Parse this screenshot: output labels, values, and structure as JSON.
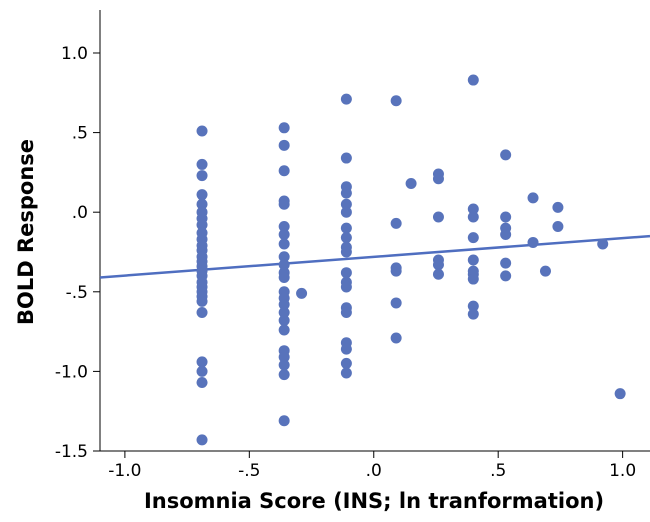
{
  "chart_data": {
    "type": "scatter",
    "title": "",
    "xlabel": "Insomnia Score (INS; ln tranformation)",
    "ylabel": "BOLD Response",
    "xlim": [
      -1.1,
      1.11
    ],
    "ylim": [
      -1.5,
      1.27
    ],
    "x_ticks": [
      -1.0,
      -0.5,
      0.0,
      0.5,
      1.0
    ],
    "x_tick_labels": [
      "-1.0",
      "-.5",
      ".0",
      ".5",
      "1.0"
    ],
    "y_ticks": [
      -1.5,
      -1.0,
      -0.5,
      0.0,
      0.5,
      1.0
    ],
    "y_tick_labels": [
      "-1.5",
      "-1.0",
      "-.5",
      ".0",
      ".5",
      "1.0"
    ],
    "grid": false,
    "legend": "none",
    "colors": {
      "points": "#5873bb",
      "fit_line": "#4f6ec0",
      "axis": "#000000"
    },
    "fit_line": {
      "x": [
        -1.1,
        1.11
      ],
      "y": [
        -0.41,
        -0.15
      ]
    },
    "points": [
      {
        "x": -0.69,
        "y": 0.51
      },
      {
        "x": -0.69,
        "y": 0.3
      },
      {
        "x": -0.69,
        "y": 0.23
      },
      {
        "x": -0.69,
        "y": 0.11
      },
      {
        "x": -0.69,
        "y": 0.05
      },
      {
        "x": -0.69,
        "y": 0.0
      },
      {
        "x": -0.69,
        "y": -0.04
      },
      {
        "x": -0.69,
        "y": -0.08
      },
      {
        "x": -0.69,
        "y": -0.13
      },
      {
        "x": -0.69,
        "y": -0.17
      },
      {
        "x": -0.69,
        "y": -0.21
      },
      {
        "x": -0.69,
        "y": -0.24
      },
      {
        "x": -0.69,
        "y": -0.28
      },
      {
        "x": -0.69,
        "y": -0.31
      },
      {
        "x": -0.69,
        "y": -0.34
      },
      {
        "x": -0.69,
        "y": -0.37
      },
      {
        "x": -0.69,
        "y": -0.4
      },
      {
        "x": -0.69,
        "y": -0.44
      },
      {
        "x": -0.69,
        "y": -0.47
      },
      {
        "x": -0.69,
        "y": -0.5
      },
      {
        "x": -0.69,
        "y": -0.53
      },
      {
        "x": -0.69,
        "y": -0.56
      },
      {
        "x": -0.69,
        "y": -0.63
      },
      {
        "x": -0.69,
        "y": -0.94
      },
      {
        "x": -0.69,
        "y": -1.0
      },
      {
        "x": -0.69,
        "y": -1.07
      },
      {
        "x": -0.69,
        "y": -1.43
      },
      {
        "x": -0.36,
        "y": 0.53
      },
      {
        "x": -0.36,
        "y": 0.42
      },
      {
        "x": -0.36,
        "y": 0.26
      },
      {
        "x": -0.36,
        "y": 0.07
      },
      {
        "x": -0.36,
        "y": 0.05
      },
      {
        "x": -0.36,
        "y": -0.09
      },
      {
        "x": -0.36,
        "y": -0.14
      },
      {
        "x": -0.36,
        "y": -0.2
      },
      {
        "x": -0.36,
        "y": -0.28
      },
      {
        "x": -0.36,
        "y": -0.33
      },
      {
        "x": -0.36,
        "y": -0.38
      },
      {
        "x": -0.36,
        "y": -0.41
      },
      {
        "x": -0.36,
        "y": -0.5
      },
      {
        "x": -0.36,
        "y": -0.54
      },
      {
        "x": -0.36,
        "y": -0.58
      },
      {
        "x": -0.36,
        "y": -0.63
      },
      {
        "x": -0.36,
        "y": -0.68
      },
      {
        "x": -0.36,
        "y": -0.74
      },
      {
        "x": -0.36,
        "y": -0.87
      },
      {
        "x": -0.36,
        "y": -0.91
      },
      {
        "x": -0.36,
        "y": -0.96
      },
      {
        "x": -0.36,
        "y": -1.02
      },
      {
        "x": -0.36,
        "y": -1.31
      },
      {
        "x": -0.29,
        "y": -0.51
      },
      {
        "x": -0.11,
        "y": 0.71
      },
      {
        "x": -0.11,
        "y": 0.34
      },
      {
        "x": -0.11,
        "y": 0.16
      },
      {
        "x": -0.11,
        "y": 0.12
      },
      {
        "x": -0.11,
        "y": 0.05
      },
      {
        "x": -0.11,
        "y": 0.0
      },
      {
        "x": -0.11,
        "y": -0.1
      },
      {
        "x": -0.11,
        "y": -0.16
      },
      {
        "x": -0.11,
        "y": -0.22
      },
      {
        "x": -0.11,
        "y": -0.25
      },
      {
        "x": -0.11,
        "y": -0.38
      },
      {
        "x": -0.11,
        "y": -0.44
      },
      {
        "x": -0.11,
        "y": -0.47
      },
      {
        "x": -0.11,
        "y": -0.6
      },
      {
        "x": -0.11,
        "y": -0.63
      },
      {
        "x": -0.11,
        "y": -0.82
      },
      {
        "x": -0.11,
        "y": -0.86
      },
      {
        "x": -0.11,
        "y": -0.95
      },
      {
        "x": -0.11,
        "y": -1.01
      },
      {
        "x": 0.09,
        "y": 0.7
      },
      {
        "x": 0.09,
        "y": -0.07
      },
      {
        "x": 0.09,
        "y": -0.35
      },
      {
        "x": 0.09,
        "y": -0.37
      },
      {
        "x": 0.09,
        "y": -0.57
      },
      {
        "x": 0.09,
        "y": -0.79
      },
      {
        "x": 0.15,
        "y": 0.18
      },
      {
        "x": 0.26,
        "y": 0.24
      },
      {
        "x": 0.26,
        "y": 0.21
      },
      {
        "x": 0.26,
        "y": -0.03
      },
      {
        "x": 0.26,
        "y": -0.3
      },
      {
        "x": 0.26,
        "y": -0.33
      },
      {
        "x": 0.26,
        "y": -0.39
      },
      {
        "x": 0.4,
        "y": 0.83
      },
      {
        "x": 0.4,
        "y": 0.02
      },
      {
        "x": 0.4,
        "y": -0.03
      },
      {
        "x": 0.4,
        "y": -0.16
      },
      {
        "x": 0.4,
        "y": -0.3
      },
      {
        "x": 0.4,
        "y": -0.37
      },
      {
        "x": 0.4,
        "y": -0.39
      },
      {
        "x": 0.4,
        "y": -0.42
      },
      {
        "x": 0.4,
        "y": -0.59
      },
      {
        "x": 0.4,
        "y": -0.64
      },
      {
        "x": 0.53,
        "y": 0.36
      },
      {
        "x": 0.53,
        "y": -0.03
      },
      {
        "x": 0.53,
        "y": -0.1
      },
      {
        "x": 0.53,
        "y": -0.14
      },
      {
        "x": 0.53,
        "y": -0.32
      },
      {
        "x": 0.53,
        "y": -0.4
      },
      {
        "x": 0.64,
        "y": 0.09
      },
      {
        "x": 0.64,
        "y": -0.19
      },
      {
        "x": 0.69,
        "y": -0.37
      },
      {
        "x": 0.74,
        "y": 0.03
      },
      {
        "x": 0.74,
        "y": -0.09
      },
      {
        "x": 0.92,
        "y": -0.2
      },
      {
        "x": 0.99,
        "y": -1.14
      }
    ]
  }
}
